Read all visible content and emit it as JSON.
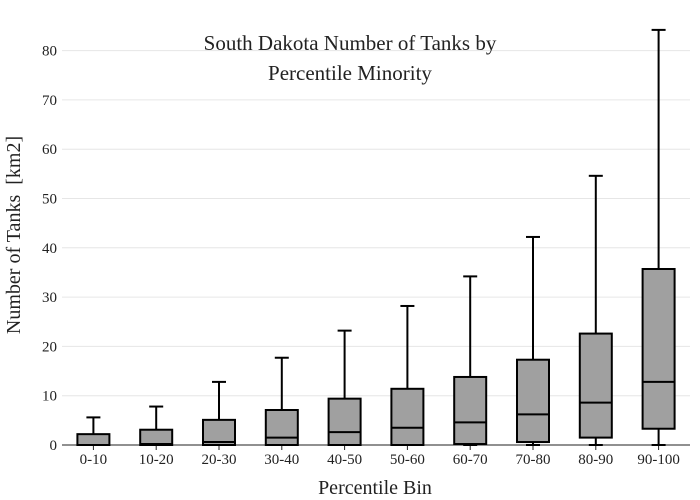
{
  "chart_data": {
    "type": "box",
    "title_lines": [
      "South Dakota Number of Tanks by",
      "Percentile Minority"
    ],
    "xlabel": "Percentile Bin",
    "ylabel": "Number of Tanks  [km2]",
    "ylim": [
      0,
      85
    ],
    "yticks": [
      0,
      10,
      20,
      30,
      40,
      50,
      60,
      70,
      80
    ],
    "grid": true,
    "categories": [
      "0-10",
      "10-20",
      "20-30",
      "30-40",
      "40-50",
      "50-60",
      "60-70",
      "70-80",
      "80-90",
      "90-100"
    ],
    "boxes": [
      {
        "category": "0-10",
        "min": 0,
        "q1": 0,
        "median": 0,
        "q3": 2.2,
        "max": 5.6
      },
      {
        "category": "10-20",
        "min": 0,
        "q1": 0,
        "median": 0.2,
        "q3": 3.1,
        "max": 7.8
      },
      {
        "category": "20-30",
        "min": 0,
        "q1": 0,
        "median": 0.6,
        "q3": 5.1,
        "max": 12.8
      },
      {
        "category": "30-40",
        "min": 0,
        "q1": 0,
        "median": 1.5,
        "q3": 7.1,
        "max": 17.7
      },
      {
        "category": "40-50",
        "min": 0,
        "q1": 0,
        "median": 2.6,
        "q3": 9.4,
        "max": 23.2
      },
      {
        "category": "50-60",
        "min": 0,
        "q1": 0,
        "median": 3.5,
        "q3": 11.4,
        "max": 28.2
      },
      {
        "category": "60-70",
        "min": 0,
        "q1": 0.2,
        "median": 4.6,
        "q3": 13.8,
        "max": 34.2
      },
      {
        "category": "70-80",
        "min": 0,
        "q1": 0.6,
        "median": 6.2,
        "q3": 17.3,
        "max": 42.2
      },
      {
        "category": "80-90",
        "min": 0,
        "q1": 1.5,
        "median": 8.6,
        "q3": 22.6,
        "max": 54.6
      },
      {
        "category": "90-100",
        "min": 0,
        "q1": 3.3,
        "median": 12.8,
        "q3": 35.7,
        "max": 84.2
      }
    ],
    "colors": {
      "box_fill": "#a0a0a0",
      "box_stroke": "#000000",
      "grid": "#e6e6e6"
    }
  }
}
